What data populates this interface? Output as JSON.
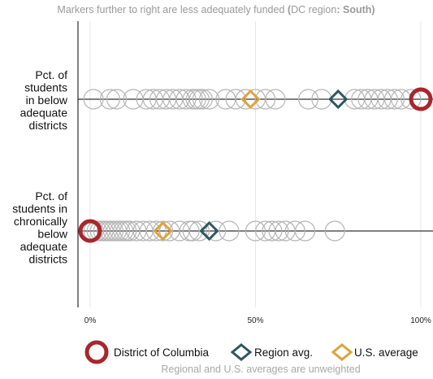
{
  "chart_data": {
    "type": "scatter",
    "title": {
      "prefix": "Markers further to right are less adequately funded ",
      "paren_open": "(",
      "region_prefix": "DC region",
      "colon": ": ",
      "region_name": "South",
      "paren_close": ")"
    },
    "xlim": [
      0,
      100
    ],
    "x_ticks": [
      {
        "value": 0,
        "label": "0%"
      },
      {
        "value": 50,
        "label": "50%"
      },
      {
        "value": 100,
        "label": "100%"
      }
    ],
    "grid": true,
    "rows": [
      {
        "label_lines": [
          "Pct. of",
          "students",
          "in below",
          "adequate",
          "districts"
        ],
        "states": [
          1,
          6,
          8,
          13,
          17,
          19,
          21,
          23,
          25,
          27,
          29,
          31,
          32,
          33,
          34,
          36,
          41,
          44,
          47,
          50,
          53,
          56,
          66,
          70,
          80,
          82,
          84,
          86,
          88,
          90,
          92,
          94,
          97
        ],
        "dc": 100,
        "region_avg": 75,
        "us_avg": 48.5
      },
      {
        "label_lines": [
          "Pct. of",
          "students in",
          "chronically",
          "below",
          "adequate",
          "districts"
        ],
        "states": [
          1,
          2,
          3,
          4,
          5,
          6,
          7,
          8,
          9,
          10,
          11,
          12,
          14,
          16,
          18,
          20,
          22,
          24,
          27,
          30,
          31,
          33,
          38,
          42,
          50,
          53,
          55,
          57,
          59,
          62,
          65,
          74
        ],
        "dc": 0,
        "region_avg": 36,
        "us_avg": 22
      }
    ],
    "legend": {
      "position": "bottom",
      "items": [
        {
          "key": "dc",
          "label": "District of Columbia",
          "color": "#a8262c",
          "shape": "circle"
        },
        {
          "key": "region",
          "label": "Region avg.",
          "color": "#2f5764",
          "shape": "diamond"
        },
        {
          "key": "us",
          "label": "U.S. average",
          "color": "#e0a23a",
          "shape": "diamond"
        }
      ]
    },
    "note": "Regional and U.S. averages are unweighted",
    "colors": {
      "state_marker": "#b4b4b4",
      "dc": "#a8262c",
      "region": "#2f5764",
      "us": "#e0a23a",
      "grid": "#e6e6e6",
      "axis": "#000000"
    }
  }
}
